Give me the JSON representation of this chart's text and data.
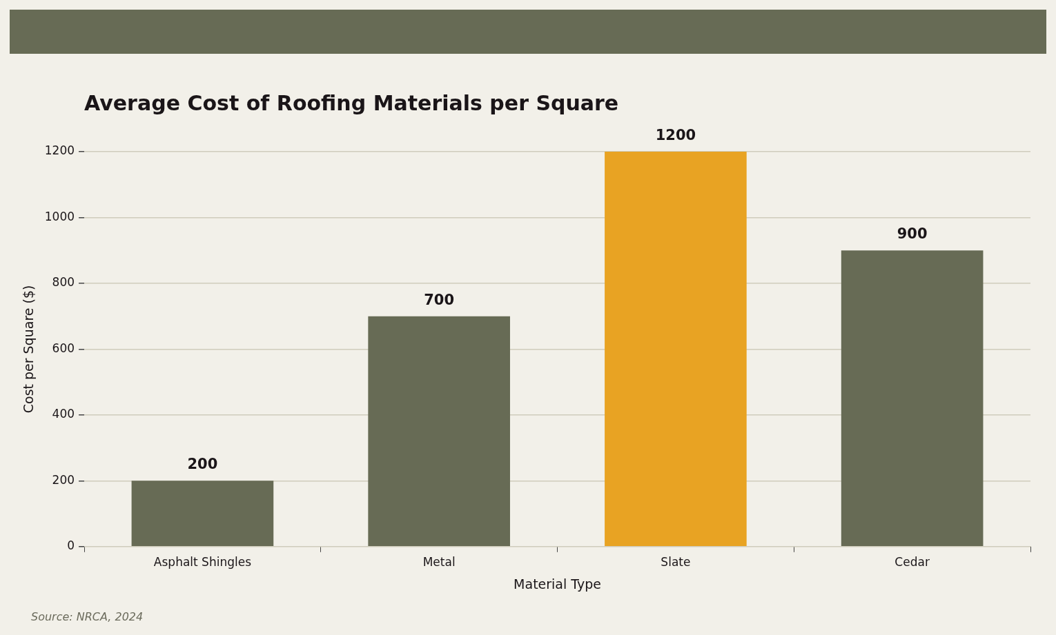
{
  "chart_data": {
    "type": "bar",
    "title": "Average Cost of Roofing Materials per Square",
    "xlabel": "Material Type",
    "ylabel": "Cost per Square ($)",
    "categories": [
      "Asphalt Shingles",
      "Metal",
      "Slate",
      "Cedar"
    ],
    "values": [
      200,
      700,
      1200,
      900
    ],
    "colors": [
      "#676b55",
      "#676b55",
      "#e8a323",
      "#676b55"
    ],
    "ylim": [
      0,
      1200
    ],
    "yticks": [
      0,
      200,
      400,
      600,
      800,
      1000,
      1200
    ],
    "grid": "y",
    "legend": false,
    "data_labels": true,
    "annotations": [
      "Source: NRCA, 2024"
    ]
  }
}
